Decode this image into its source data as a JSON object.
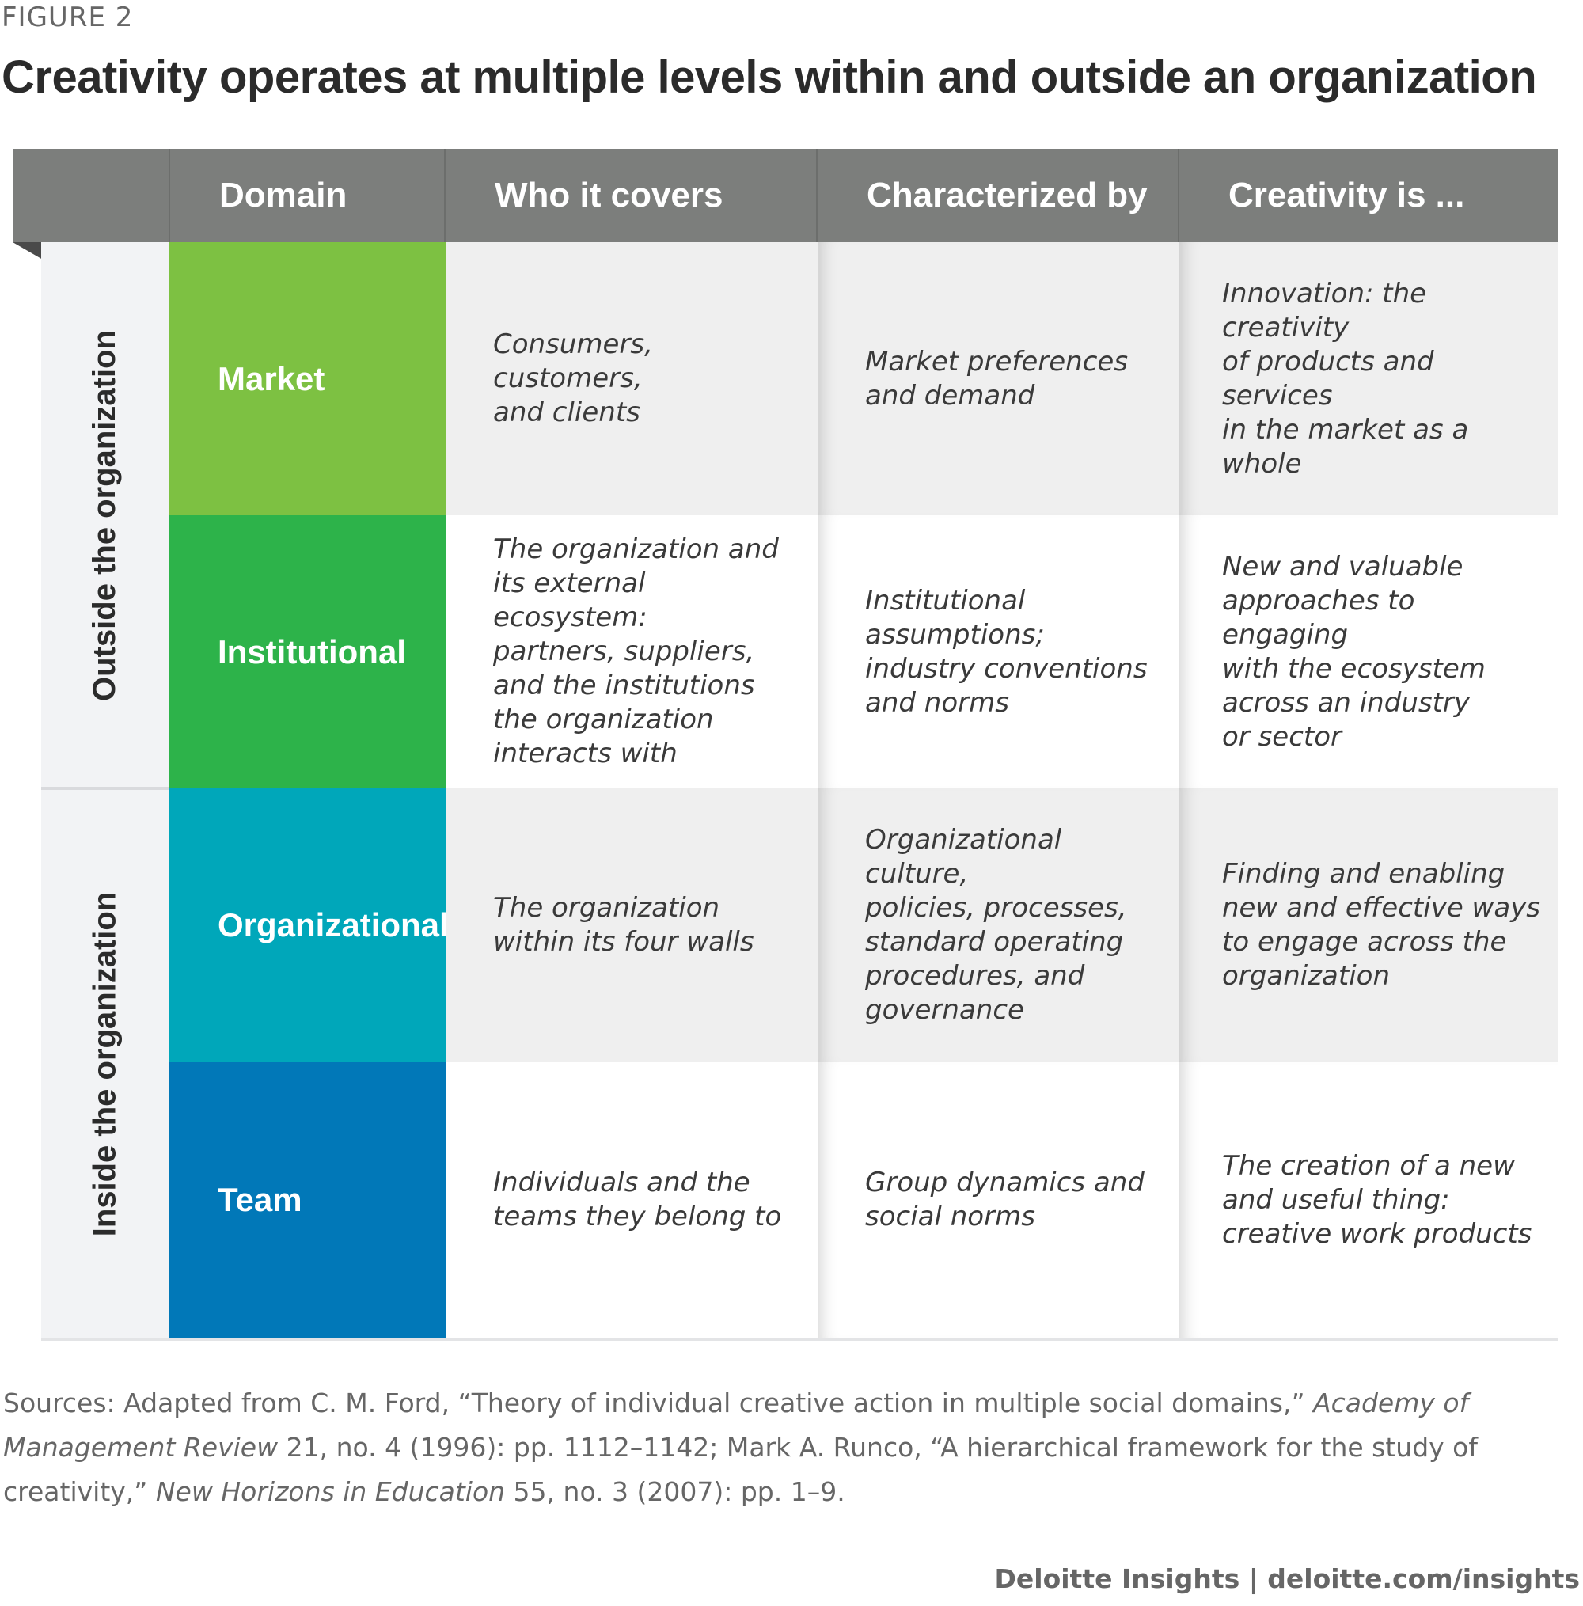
{
  "figure_label": "FIGURE 2",
  "title": "Creativity operates at multiple levels within and outside an organization",
  "header": {
    "domain": "Domain",
    "who": "Who it covers",
    "characterized": "Characterized by",
    "creativity": "Creativity is ..."
  },
  "side_labels": {
    "outside": "Outside the organization",
    "inside": "Inside the organization"
  },
  "rows": [
    {
      "domain": "Market",
      "color": "#7dc142",
      "who": "Consumers, customers,\nand clients",
      "characterized": "Market preferences\nand demand",
      "creativity": "Innovation: the creativity\nof products and services\nin the market as a whole"
    },
    {
      "domain": "Institutional",
      "color": "#2db34a",
      "who": "The organization and\nits external ecosystem:\npartners, suppliers,\nand the institutions\nthe organization\ninteracts with",
      "characterized": "Institutional assumptions;\nindustry conventions\nand norms",
      "creativity": "New and valuable\napproaches to engaging\nwith the ecosystem\nacross an industry\nor sector"
    },
    {
      "domain": "Organizational",
      "color": "#00a7ba",
      "who": "The organization\nwithin its four walls",
      "characterized": "Organizational culture,\npolicies, processes,\nstandard operating\nprocedures, and\ngovernance",
      "creativity": "Finding and enabling\nnew and effective ways\nto engage across the\norganization"
    },
    {
      "domain": "Team",
      "color": "#0178b8",
      "who": "Individuals and the\nteams they belong to",
      "characterized": "Group dynamics and\nsocial norms",
      "creativity": "The creation of a new\nand useful thing:\ncreative work products"
    }
  ],
  "sources": {
    "prefix": "Sources: Adapted from C. M. Ford, “Theory of individual creative action in multiple social domains,” ",
    "journal1": "Academy of Management Review",
    "mid": " 21, no. 4 (1996): pp. 1112–1142; Mark A. Runco, “A hierarchical framework for the study of creativity,” ",
    "journal2": "New Horizons in Education",
    "suffix": " 55, no. 3 (2007): pp. 1–9."
  },
  "footer": "Deloitte Insights | deloitte.com/insights"
}
